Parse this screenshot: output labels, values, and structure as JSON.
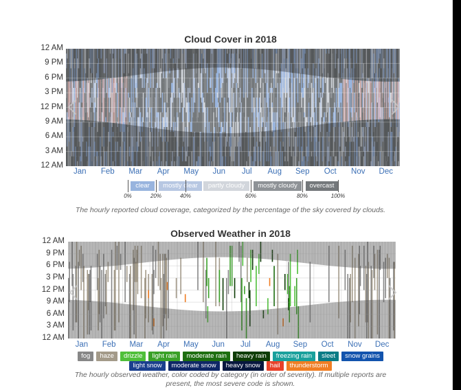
{
  "chart_data": [
    {
      "type": "heatmap",
      "title": "Cloud Cover in 2018",
      "y_ticks": [
        "12 AM",
        "9 PM",
        "6 PM",
        "3 PM",
        "12 PM",
        "9 AM",
        "6 AM",
        "3 AM",
        "12 AM"
      ],
      "x_ticks": [
        "Jan",
        "Feb",
        "Mar",
        "Apr",
        "May",
        "Jun",
        "Jul",
        "Aug",
        "Sep",
        "Oct",
        "Nov",
        "Dec"
      ],
      "legend": [
        {
          "label": "clear",
          "color": "#98b4de"
        },
        {
          "label": "mostly clear",
          "color": "#b7c7e2"
        },
        {
          "label": "partly cloudy",
          "color": "#d2d6dc"
        },
        {
          "label": "mostly cloudy",
          "color": "#8e9296"
        },
        {
          "label": "overcast",
          "color": "#74787b"
        }
      ],
      "legend_ticks": [
        "0%",
        "20%",
        "40%",
        "60%",
        "80%",
        "100%"
      ],
      "night_color": "#f2b6ae",
      "caption": "The hourly reported cloud coverage, categorized by the percentage of the sky covered by clouds."
    },
    {
      "type": "heatmap",
      "title": "Observed Weather in 2018",
      "y_ticks": [
        "12 AM",
        "9 PM",
        "6 PM",
        "3 PM",
        "12 PM",
        "9 AM",
        "6 AM",
        "3 AM",
        "12 AM"
      ],
      "x_ticks": [
        "Jan",
        "Feb",
        "Mar",
        "Apr",
        "May",
        "Jun",
        "Jul",
        "Aug",
        "Sep",
        "Oct",
        "Nov",
        "Dec"
      ],
      "legend_row1": [
        {
          "label": "fog",
          "color": "#878787"
        },
        {
          "label": "haze",
          "color": "#a39a89"
        },
        {
          "label": "drizzle",
          "color": "#4fbf3a"
        },
        {
          "label": "light rain",
          "color": "#3aa127"
        },
        {
          "label": "moderate rain",
          "color": "#1d6e10"
        },
        {
          "label": "heavy rain",
          "color": "#0e3d06"
        },
        {
          "label": "freezing rain",
          "color": "#19a09c"
        },
        {
          "label": "sleet",
          "color": "#0b7c86"
        },
        {
          "label": "snow grains",
          "color": "#1253ad"
        }
      ],
      "legend_row2": [
        {
          "label": "light snow",
          "color": "#1b3f8e"
        },
        {
          "label": "moderate snow",
          "color": "#0f2767"
        },
        {
          "label": "heavy snow",
          "color": "#07173f"
        },
        {
          "label": "hail",
          "color": "#e8412a"
        },
        {
          "label": "thunderstorm",
          "color": "#f07e24"
        }
      ],
      "caption_line1": "The hourly observed weather, color coded by category (in order of severity). If multiple reports are",
      "caption_line2": "present, the most severe code is shown."
    }
  ]
}
